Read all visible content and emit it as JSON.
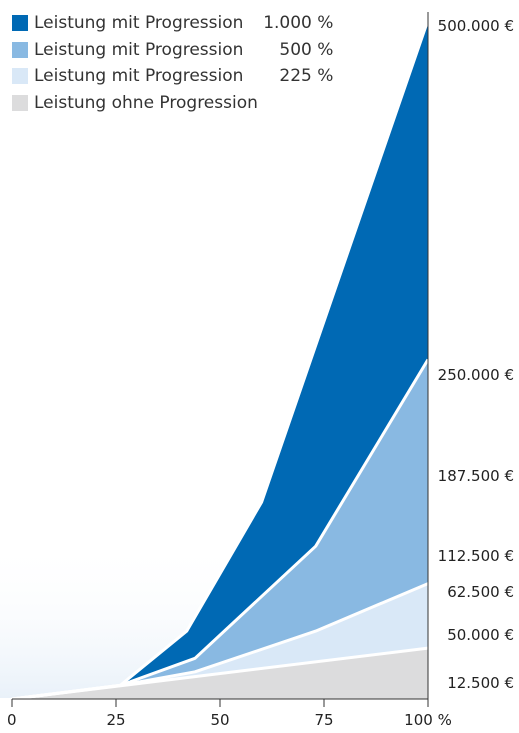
{
  "chart_data": {
    "type": "area",
    "x_unit": "%",
    "xlim": [
      0,
      100
    ],
    "ylim": [
      0,
      500000
    ],
    "x_ticks": [
      0,
      25,
      50,
      75,
      100
    ],
    "x_tick_labels": [
      "0",
      "25",
      "50",
      "75",
      "100 %"
    ],
    "y_ticks": [
      500000,
      250000,
      187500,
      112500,
      62500,
      50000,
      12500
    ],
    "y_tick_labels": [
      "500.000 €",
      "250.000 €",
      "187.500 €",
      "112.500 €",
      "62.500 €",
      "50.000 €",
      "12.500 €"
    ],
    "series": [
      {
        "name": "Leistung mit Progression",
        "pct": "1.000 %",
        "color": "#0069b4",
        "points": [
          [
            0,
            0
          ],
          [
            26,
            10000
          ],
          [
            42,
            50000
          ],
          [
            60,
            145000
          ],
          [
            100,
            500000
          ]
        ]
      },
      {
        "name": "Leistung mit Progression",
        "pct": "500 %",
        "color": "#89b9e2",
        "points": [
          [
            0,
            0
          ],
          [
            26,
            10000
          ],
          [
            44,
            30000
          ],
          [
            73,
            112500
          ],
          [
            100,
            250000
          ]
        ]
      },
      {
        "name": "Leistung mit Progression",
        "pct": "225 %",
        "color": "#d9e8f7",
        "points": [
          [
            0,
            0
          ],
          [
            26,
            10000
          ],
          [
            44,
            20000
          ],
          [
            73,
            50000
          ],
          [
            100,
            85000
          ]
        ]
      },
      {
        "name": "Leistung ohne Progression",
        "pct": "",
        "color": "#dcdcdd",
        "points": [
          [
            0,
            0
          ],
          [
            100,
            37500
          ]
        ]
      }
    ],
    "grid": false,
    "legend_position": "top-left"
  }
}
